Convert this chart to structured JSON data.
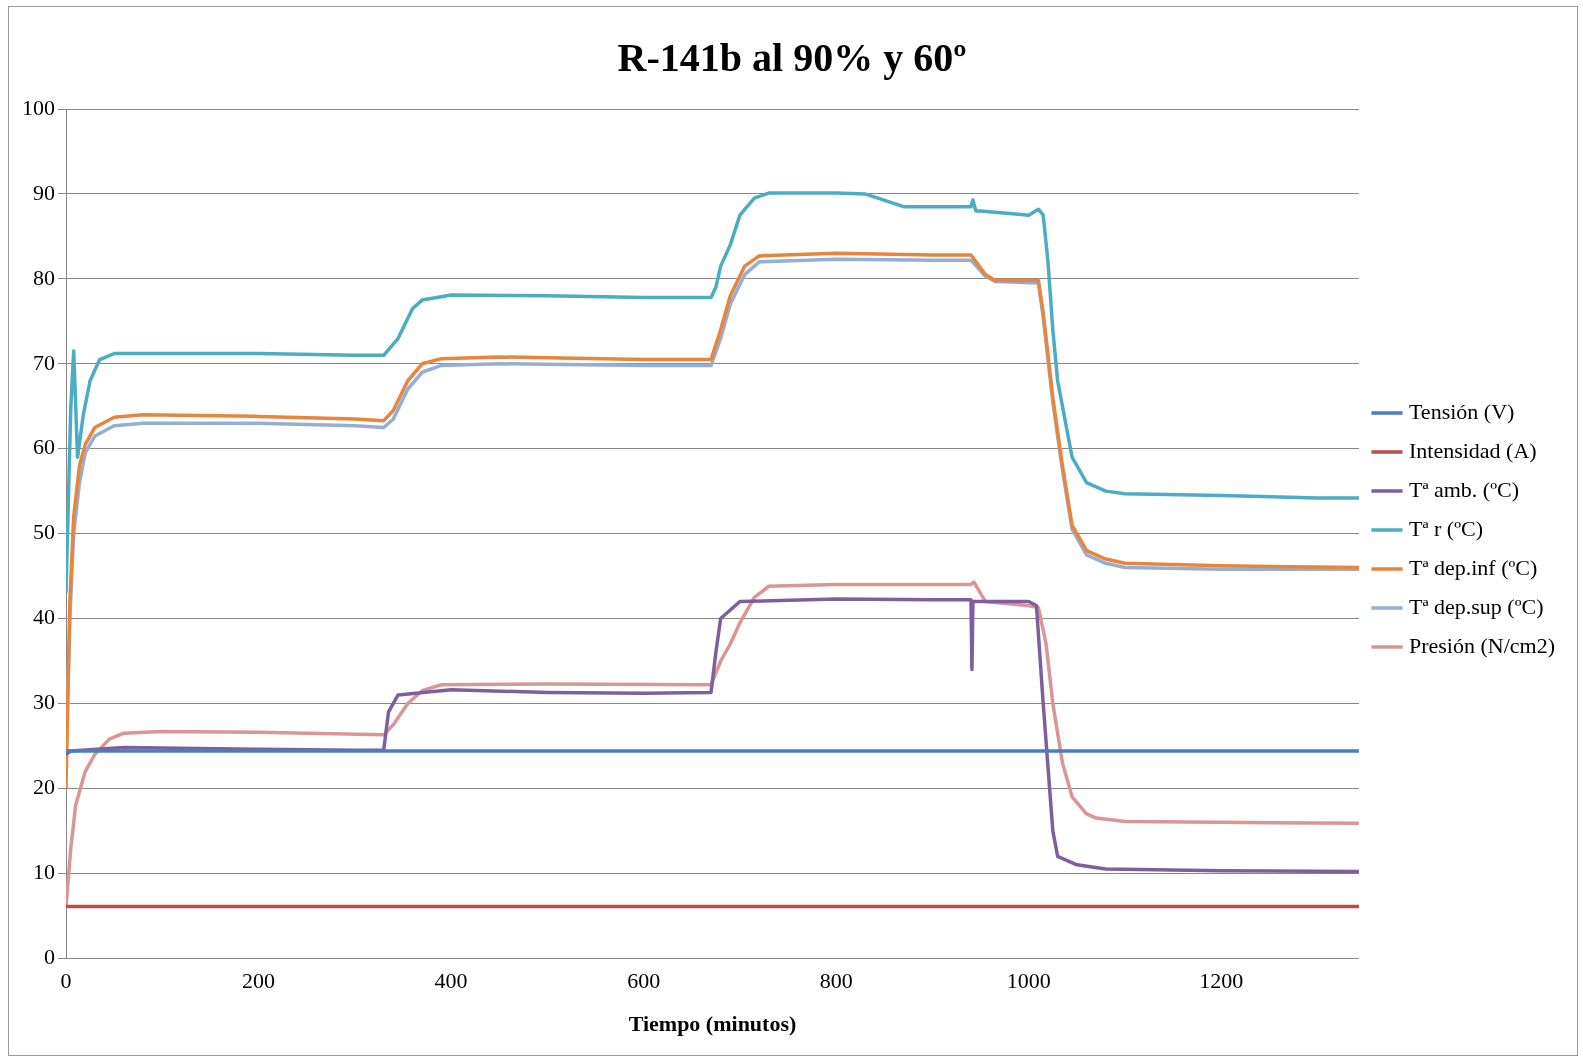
{
  "chart_data": {
    "type": "line",
    "title": "R-141b al 90% y 60º",
    "xlabel": "Tiempo (minutos)",
    "xlim": [
      0,
      1343
    ],
    "xticks": [
      0,
      200,
      400,
      600,
      800,
      1000,
      1200
    ],
    "ylim": [
      0,
      100
    ],
    "yticks": [
      0,
      10,
      20,
      30,
      40,
      50,
      60,
      70,
      80,
      90,
      100
    ],
    "grid": "y",
    "legend": "right",
    "marker": "none",
    "line_style": "solid",
    "series": [
      {
        "name": "Tensión (V)",
        "color": "#4a7ebb",
        "x": [
          0,
          1343
        ],
        "values": [
          24.4,
          24.4
        ]
      },
      {
        "name": "Intensidad (A)",
        "color": "#be4b48",
        "x": [
          0,
          1343
        ],
        "values": [
          6.1,
          6.1
        ]
      },
      {
        "name": "Tª amb. (ºC)",
        "color": "#7d5fa0",
        "x": [
          0,
          5,
          60,
          200,
          300,
          330,
          335,
          345,
          400,
          500,
          600,
          670,
          675,
          680,
          700,
          800,
          900,
          940,
          941,
          942,
          943,
          945,
          1000,
          1008,
          1015,
          1025,
          1030,
          1050,
          1080,
          1200,
          1343
        ],
        "values": [
          24,
          24.4,
          24.8,
          24.6,
          24.5,
          24.5,
          29,
          31,
          31.6,
          31.3,
          31.2,
          31.3,
          36,
          40,
          42,
          42.3,
          42.2,
          42.2,
          34,
          42,
          42,
          42,
          42,
          41.5,
          30,
          15,
          12,
          11,
          10.5,
          10.3,
          10.2
        ]
      },
      {
        "name": "Tª r (ºC)",
        "color": "#4bacc6",
        "x": [
          0,
          5,
          8,
          12,
          18,
          25,
          35,
          50,
          100,
          200,
          300,
          330,
          345,
          360,
          370,
          400,
          500,
          600,
          670,
          675,
          680,
          690,
          700,
          715,
          730,
          800,
          830,
          870,
          940,
          942,
          945,
          950,
          1000,
          1010,
          1015,
          1020,
          1025,
          1030,
          1045,
          1060,
          1080,
          1100,
          1200,
          1300,
          1343
        ],
        "values": [
          43,
          65,
          71.5,
          59,
          64,
          68,
          70.5,
          71.2,
          71.2,
          71.2,
          71,
          71,
          73,
          76.5,
          77.5,
          78.1,
          78,
          77.8,
          77.8,
          79,
          81.5,
          84,
          87.5,
          89.5,
          90.1,
          90.1,
          90,
          88.5,
          88.5,
          89.3,
          88,
          88,
          87.5,
          88.2,
          87.5,
          82,
          74,
          68,
          59,
          56,
          55,
          54.7,
          54.5,
          54.2,
          54.2
        ]
      },
      {
        "name": "Tª dep.inf (ºC)",
        "color": "#e8853a",
        "x": [
          0,
          4,
          8,
          14,
          20,
          30,
          50,
          80,
          200,
          300,
          330,
          340,
          355,
          370,
          390,
          450,
          600,
          670,
          680,
          690,
          705,
          720,
          800,
          900,
          940,
          955,
          965,
          1010,
          1015,
          1025,
          1035,
          1045,
          1060,
          1080,
          1100,
          1200,
          1343
        ],
        "values": [
          20,
          42,
          52,
          58,
          60.5,
          62.5,
          63.7,
          64,
          63.8,
          63.5,
          63.3,
          64.5,
          68,
          70,
          70.6,
          70.8,
          70.5,
          70.5,
          74,
          78,
          81.5,
          82.7,
          83,
          82.8,
          82.8,
          80.5,
          79.8,
          79.8,
          76,
          66,
          58,
          51,
          48,
          47,
          46.5,
          46.2,
          46
        ]
      },
      {
        "name": "Tª dep.sup (ºC)",
        "color": "#94aed8",
        "x": [
          0,
          4,
          8,
          14,
          20,
          30,
          50,
          80,
          200,
          300,
          330,
          340,
          355,
          370,
          390,
          450,
          600,
          670,
          680,
          690,
          705,
          720,
          800,
          900,
          940,
          955,
          965,
          1010,
          1015,
          1025,
          1035,
          1045,
          1060,
          1080,
          1100,
          1200,
          1343
        ],
        "values": [
          24,
          40,
          50,
          56,
          59.5,
          61.5,
          62.7,
          63,
          63,
          62.7,
          62.5,
          63.5,
          67,
          69,
          69.8,
          70,
          69.8,
          69.8,
          73,
          77,
          80.5,
          82,
          82.3,
          82.2,
          82.2,
          80.3,
          79.7,
          79.5,
          75.5,
          65.5,
          57.5,
          50.5,
          47.5,
          46.5,
          46,
          45.8,
          45.8
        ]
      },
      {
        "name": "Presión (N/cm2)",
        "color": "#d99694",
        "x": [
          0,
          5,
          10,
          20,
          30,
          45,
          60,
          100,
          200,
          330,
          340,
          355,
          370,
          390,
          500,
          670,
          680,
          690,
          700,
          715,
          730,
          800,
          900,
          940,
          943,
          955,
          1000,
          1010,
          1018,
          1025,
          1035,
          1045,
          1060,
          1070,
          1100,
          1200,
          1343
        ],
        "values": [
          6,
          13,
          18,
          22,
          24,
          25.8,
          26.5,
          26.7,
          26.6,
          26.3,
          27.5,
          30,
          31.5,
          32.2,
          32.3,
          32.2,
          35,
          37,
          39.5,
          42.5,
          43.8,
          44,
          44,
          44,
          44.3,
          42,
          41.5,
          41.3,
          37,
          30,
          23,
          19,
          17,
          16.5,
          16.1,
          16,
          15.9
        ]
      }
    ]
  }
}
